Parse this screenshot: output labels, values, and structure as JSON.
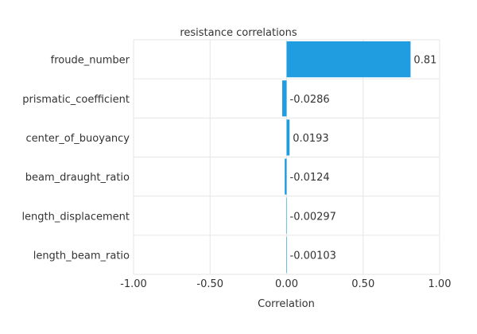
{
  "chart_data": {
    "type": "bar",
    "orientation": "horizontal",
    "title": "resistance correlations",
    "xlabel": "Correlation",
    "ylabel": "",
    "xlim": [
      -1.0,
      1.0
    ],
    "xticks": [
      "-1.00",
      "-0.50",
      "0.00",
      "0.50",
      "1.00"
    ],
    "grid": true,
    "bar_color": "#1f9de0",
    "categories": [
      "froude_number",
      "prismatic_coefficient",
      "center_of_buoyancy",
      "beam_draught_ratio",
      "length_displacement",
      "length_beam_ratio"
    ],
    "values": [
      0.81,
      -0.0286,
      0.0193,
      -0.0124,
      -0.00297,
      -0.00103
    ],
    "value_labels": [
      "0.81",
      "-0.0286",
      "0.0193",
      "-0.0124",
      "-0.00297",
      "-0.00103"
    ]
  }
}
